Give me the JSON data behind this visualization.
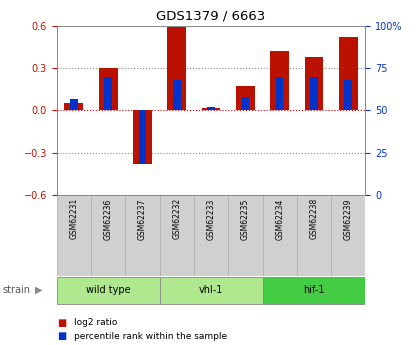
{
  "title": "GDS1379 / 6663",
  "samples": [
    "GSM62231",
    "GSM62236",
    "GSM62237",
    "GSM62232",
    "GSM62233",
    "GSM62235",
    "GSM62234",
    "GSM62238",
    "GSM62239"
  ],
  "log2_ratio": [
    0.05,
    0.3,
    -0.38,
    0.59,
    0.02,
    0.17,
    0.42,
    0.38,
    0.52
  ],
  "percentile_rank": [
    57,
    70,
    18,
    68,
    52,
    58,
    70,
    70,
    68
  ],
  "groups": [
    {
      "label": "wild type",
      "start": 0,
      "end": 3,
      "color": "#b0e890"
    },
    {
      "label": "vhl-1",
      "start": 3,
      "end": 6,
      "color": "#b0e890"
    },
    {
      "label": "hif-1",
      "start": 6,
      "end": 9,
      "color": "#44cc44"
    }
  ],
  "ylim": [
    -0.6,
    0.6
  ],
  "yticks_left": [
    -0.6,
    -0.3,
    0.0,
    0.3,
    0.6
  ],
  "yticks_right_pct": [
    0,
    25,
    50,
    75,
    100
  ],
  "ytick_labels_right": [
    "0",
    "25",
    "50",
    "75",
    "100%"
  ],
  "bar_color_red": "#bb1100",
  "bar_color_blue": "#0033cc",
  "dotted_color": "#888888",
  "zero_line_color": "#cc0000",
  "bar_width": 0.55,
  "blue_bar_width": 0.22,
  "bg_color": "#ffffff",
  "plot_bg": "#f0f0f0",
  "sample_cell_bg": "#d0d0d0",
  "sample_cell_edge": "#aaaaaa"
}
